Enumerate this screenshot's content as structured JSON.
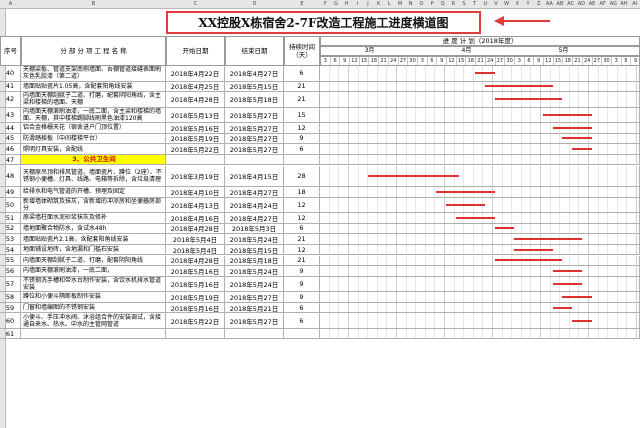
{
  "column_letters": [
    "A",
    "B",
    "C",
    "D",
    "E",
    "F",
    "G",
    "H",
    "I",
    "J",
    "K",
    "L",
    "M",
    "N",
    "O",
    "P",
    "Q",
    "R",
    "S",
    "T",
    "U",
    "V",
    "W",
    "X",
    "Y",
    "Z",
    "AA",
    "AB",
    "AC",
    "AD",
    "AE",
    "AF",
    "AG",
    "AH",
    "AI"
  ],
  "title": "XX控股X栋宿舍2-7F改造工程施工进度横道图",
  "headers": {
    "no": "序号",
    "name": "分 部 分 项 工 程 名 称",
    "start": "开始日期",
    "end": "结束日期",
    "duration": "持续时间（天）",
    "schedule": "进  度  计  划（2018年度）"
  },
  "months": [
    "3月",
    "4月",
    "5月"
  ],
  "days": [
    "3",
    "6",
    "9",
    "12",
    "15",
    "18",
    "21",
    "24",
    "27",
    "30",
    "3",
    "6",
    "9",
    "12",
    "15",
    "18",
    "21",
    "24",
    "27",
    "30",
    "3",
    "6",
    "9",
    "12",
    "15",
    "18",
    "21",
    "24",
    "27",
    "30",
    "3",
    "6",
    "9"
  ],
  "rows": [
    {
      "no": "40",
      "name": "天棚梁板、管道支架南侧墙面、吾棚管道接缝表面刷灰色乳胶漆（第二道）",
      "start": "2018年4月22日",
      "end": "2018年4月27日",
      "dur": "6",
      "bar_start": 16,
      "bar_len": 2.0
    },
    {
      "no": "41",
      "name": "墙面贴贴瓷片1.05高，含配套阳角线安装",
      "start": "2018年4月25日",
      "end": "2018年5月15日",
      "dur": "21",
      "bar_start": 17,
      "bar_len": 7.0
    },
    {
      "no": "42",
      "name": "内墙面天棚刮腻子二道、打磨，配套阴阳角线，含主梁和楼梯的墙面、天棚",
      "start": "2018年4月28日",
      "end": "2018年5月18日",
      "dur": "21",
      "bar_start": 18,
      "bar_len": 7.0
    },
    {
      "no": "43",
      "name": "内墙面天棚滚刷油漆，一底二面，含主梁和楼梯的墙面、天棚，其中楼梯踢脚线刷黑色油漆120高",
      "start": "2018年5月13日",
      "end": "2018年5月27日",
      "dur": "15",
      "bar_start": 23,
      "bar_len": 5.0
    },
    {
      "no": "44",
      "name": "铝合金格栅天花（宿舍进户门顶位置）",
      "start": "2018年5月16日",
      "end": "2018年5月27日",
      "dur": "12",
      "bar_start": 24,
      "bar_len": 4.0
    },
    {
      "no": "45",
      "name": "防滑踏棱板（中间楼梯平台）",
      "start": "2018年5月19日",
      "end": "2018年5月27日",
      "dur": "9",
      "bar_start": 25,
      "bar_len": 3.0
    },
    {
      "no": "46",
      "name": "照明灯具安装，含配线",
      "start": "2018年5月22日",
      "end": "2018年5月27日",
      "dur": "6",
      "bar_start": 26,
      "bar_len": 2.0
    },
    {
      "no": "47",
      "section": true,
      "name": "3、公共卫生间",
      "start": "",
      "end": "",
      "dur": ""
    },
    {
      "no": "48",
      "name": "天棚原吊顶和排风管道、墙面瓷片、蹲位（2座）、不锈钢小便槽、灯具、线路、电箱等拆除，含垃圾清理",
      "start": "2018年3月19日",
      "end": "2018年4月15日",
      "dur": "28",
      "bar_start": 5,
      "bar_len": 9.3
    },
    {
      "no": "49",
      "name": "给排水和电气管道的开槽、预埋及固定",
      "start": "2018年4月10日",
      "end": "2018年4月27日",
      "dur": "18",
      "bar_start": 12,
      "bar_len": 6.0
    },
    {
      "no": "50",
      "name": "新增墙体砌筑及抹灰，含新增的冲凉房和坐便器房部分",
      "start": "2018年4月13日",
      "end": "2018年4月24日",
      "dur": "12",
      "bar_start": 13,
      "bar_len": 4.0
    },
    {
      "no": "51",
      "name": "原梁墙柱面水泥砂浆抹灰及修补",
      "start": "2018年4月16日",
      "end": "2018年4月27日",
      "dur": "12",
      "bar_start": 14,
      "bar_len": 4.0
    },
    {
      "no": "52",
      "name": "墙地面聚合物防水，含试水48h",
      "start": "2018年4月28日",
      "end": "2018年5月3日",
      "dur": "6",
      "bar_start": 18,
      "bar_len": 2.0
    },
    {
      "no": "53",
      "name": "墙面贴贴瓷片2.1高，含配套阳角线安装",
      "start": "2018年5月4日",
      "end": "2018年5月24日",
      "dur": "21",
      "bar_start": 20,
      "bar_len": 7.0
    },
    {
      "no": "54",
      "name": "地面铺设地砖，含地漏和门槛石安装",
      "start": "2018年5月4日",
      "end": "2018年5月15日",
      "dur": "12",
      "bar_start": 20,
      "bar_len": 4.0
    },
    {
      "no": "55",
      "name": "内墙面天棚刮腻子二道、打磨，配套阴阳角线",
      "start": "2018年4月28日",
      "end": "2018年5月18日",
      "dur": "21",
      "bar_start": 18,
      "bar_len": 7.0
    },
    {
      "no": "56",
      "name": "内墙面天棚滚刷油漆，一底二面，",
      "start": "2018年5月16日",
      "end": "2018年5月24日",
      "dur": "9",
      "bar_start": 24,
      "bar_len": 3.0
    },
    {
      "no": "57",
      "name": "不锈钢洗手槽和带水台制作安装，含饮水机排水管道安装",
      "start": "2018年5月16日",
      "end": "2018年5月24日",
      "dur": "9",
      "bar_start": 24,
      "bar_len": 3.0
    },
    {
      "no": "58",
      "name": "蹲位和小便斗隔断板制作安装",
      "start": "2018年5月19日",
      "end": "2018年5月27日",
      "dur": "9",
      "bar_start": 25,
      "bar_len": 3.0
    },
    {
      "no": "59",
      "name": "门窗和墙编图的不锈钢安装",
      "start": "2018年5月16日",
      "end": "2018年5月21日",
      "dur": "6",
      "bar_start": 24,
      "bar_len": 2.0
    },
    {
      "no": "60",
      "name": "小便斗、手压冲水阀、沐浴组合件的安装调试，含接通自来水、热水、中水的主管网管道",
      "start": "2018年5月22日",
      "end": "2018年5月27日",
      "dur": "6",
      "bar_start": 26,
      "bar_len": 2.0
    },
    {
      "no": "61",
      "name": "",
      "start": "",
      "end": "",
      "dur": ""
    }
  ]
}
